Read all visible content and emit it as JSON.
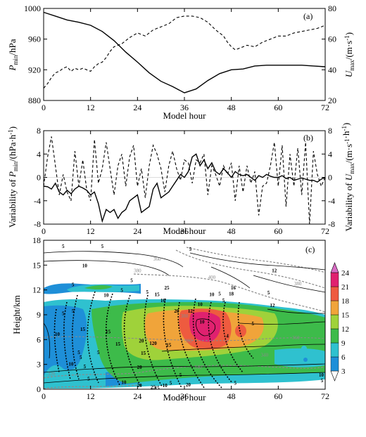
{
  "chart_data": [
    {
      "panel": "(a)",
      "type": "line",
      "xlabel": "Model hour",
      "ylabel_left": "P_min/hPa",
      "ylabel_right": "U_max/(m·s⁻¹)",
      "xlim": [
        0,
        72
      ],
      "xticks": [
        0,
        12,
        24,
        36,
        48,
        60,
        72
      ],
      "ylim_left": [
        880,
        1000
      ],
      "yticks_left": [
        880,
        920,
        960,
        1000
      ],
      "ylim_right": [
        20,
        80
      ],
      "yticks_right": [
        20,
        40,
        60,
        80
      ],
      "series": [
        {
          "axis": "left",
          "style": "solid",
          "x": [
            0,
            3,
            6,
            9,
            12,
            15,
            18,
            21,
            24,
            27,
            30,
            33,
            36,
            39,
            42,
            45,
            48,
            51,
            54,
            57,
            60,
            63,
            66,
            69,
            72
          ],
          "values": [
            995,
            990,
            985,
            982,
            978,
            970,
            958,
            943,
            930,
            916,
            905,
            898,
            890,
            895,
            906,
            915,
            920,
            921,
            925,
            926,
            926,
            926,
            926,
            925,
            924
          ]
        },
        {
          "axis": "right",
          "style": "dashed",
          "x": [
            0,
            1,
            2,
            3,
            4,
            5,
            6,
            7,
            8,
            9,
            10,
            11,
            12,
            13,
            14,
            15,
            16,
            17,
            18,
            20,
            22,
            24,
            26,
            28,
            30,
            32,
            34,
            36,
            38,
            40,
            42,
            44,
            46,
            47,
            48,
            49,
            50,
            52,
            54,
            56,
            58,
            60,
            62,
            64,
            66,
            68,
            70,
            72
          ],
          "values": [
            28,
            31,
            35,
            38,
            39,
            41,
            42,
            39,
            41,
            40,
            41,
            40,
            39,
            42,
            44,
            45,
            48,
            52,
            55,
            57,
            61,
            64,
            62,
            66,
            68,
            70,
            74,
            75,
            75,
            74,
            71,
            66,
            62,
            58,
            55,
            53,
            54,
            56,
            55,
            58,
            60,
            62,
            62,
            64,
            65,
            66,
            67,
            69
          ]
        }
      ]
    },
    {
      "panel": "(b)",
      "type": "line",
      "xlabel": "Model hour",
      "ylabel_left": "Variability of P_min/(hPa·h⁻¹)",
      "ylabel_right": "Variability of U_max/(m·s⁻¹·h⁻¹)",
      "xlim": [
        0,
        72
      ],
      "xticks": [
        0,
        12,
        24,
        36,
        48,
        60,
        72
      ],
      "ylim_left": [
        -8,
        8
      ],
      "yticks_left": [
        -8,
        -4,
        0,
        4,
        8
      ],
      "ylim_right": [
        -8,
        8
      ],
      "yticks_right": [
        -8,
        -4,
        0,
        4,
        8
      ],
      "series": [
        {
          "axis": "left",
          "style": "solid",
          "x": [
            0,
            1,
            2,
            3,
            4,
            5,
            6,
            7,
            8,
            9,
            10,
            11,
            12,
            13,
            14,
            15,
            16,
            17,
            18,
            19,
            20,
            21,
            22,
            23,
            24,
            25,
            26,
            27,
            28,
            29,
            30,
            31,
            32,
            33,
            34,
            35,
            36,
            37,
            38,
            39,
            40,
            41,
            42,
            43,
            44,
            45,
            46,
            47,
            48,
            49,
            50,
            51,
            52,
            53,
            54,
            55,
            56,
            57,
            58,
            59,
            60,
            61,
            62,
            63,
            64,
            65,
            66,
            67,
            68,
            69,
            70,
            71,
            72
          ],
          "values": [
            -1.5,
            -1.6,
            -2.0,
            -1.0,
            -2.5,
            -3.0,
            -2.2,
            -2.8,
            -2.0,
            -1.5,
            -1.8,
            -2.2,
            -3.0,
            -2.5,
            -4.5,
            -7.5,
            -5.5,
            -6.0,
            -5.5,
            -7.0,
            -6.0,
            -5.5,
            -4.0,
            -3.5,
            -3.0,
            -6.0,
            -5.5,
            -5.0,
            -2.0,
            -1.0,
            -3.5,
            -3.0,
            -2.5,
            -1.5,
            -0.5,
            0.5,
            0.0,
            1.0,
            3.5,
            4.0,
            2.0,
            3.0,
            1.5,
            2.5,
            1.0,
            0.5,
            1.5,
            0.8,
            0.0,
            1.0,
            0.5,
            0.3,
            0.5,
            0.0,
            -0.5,
            0.3,
            0.0,
            0.5,
            0.2,
            0.0,
            0.0,
            0.3,
            -0.2,
            0.0,
            -0.5,
            -0.3,
            -0.1,
            -0.3,
            -0.5,
            -0.5,
            -0.8,
            -0.3,
            0.0
          ]
        },
        {
          "axis": "right",
          "style": "dashed",
          "x": [
            0,
            1,
            2,
            3,
            4,
            5,
            6,
            7,
            8,
            9,
            10,
            11,
            12,
            13,
            14,
            15,
            16,
            17,
            18,
            19,
            20,
            21,
            22,
            23,
            24,
            25,
            26,
            27,
            28,
            29,
            30,
            31,
            32,
            33,
            34,
            35,
            36,
            37,
            38,
            39,
            40,
            41,
            42,
            43,
            44,
            45,
            46,
            47,
            48,
            49,
            50,
            51,
            52,
            53,
            54,
            55,
            56,
            57,
            58,
            59,
            60,
            61,
            62,
            63,
            64,
            65,
            66,
            67,
            68,
            69,
            70,
            71,
            72
          ],
          "values": [
            -1.5,
            3.5,
            7.0,
            2.0,
            -3.0,
            0.5,
            -2.5,
            -4.0,
            4.5,
            -1.5,
            3.0,
            -2.0,
            -4.0,
            6.5,
            -1.0,
            1.5,
            6.0,
            1.5,
            -3.0,
            2.0,
            4.0,
            -1.5,
            3.5,
            5.5,
            -1.5,
            1.5,
            -3.5,
            2.0,
            5.5,
            4.0,
            1.5,
            -2.5,
            2.0,
            4.5,
            1.5,
            -0.5,
            3.0,
            2.5,
            -1.0,
            3.0,
            2.5,
            4.0,
            -3.0,
            2.0,
            0.5,
            -1.5,
            2.0,
            0.5,
            2.5,
            -4.0,
            2.0,
            -2.5,
            2.0,
            -1.0,
            1.0,
            -6.5,
            -1.5,
            -1.0,
            2.0,
            6.0,
            -1.5,
            5.5,
            -5.0,
            4.0,
            -1.5,
            5.0,
            -3.0,
            6.0,
            -8.0,
            4.5,
            0.5,
            -1.5,
            0.0
          ]
        }
      ]
    },
    {
      "panel": "(c)",
      "type": "heatmap",
      "xlabel": "Model hour",
      "ylabel": "Height/km",
      "xlim": [
        0,
        72
      ],
      "xticks": [
        0,
        12,
        24,
        36,
        48,
        60,
        72
      ],
      "ylim": [
        0,
        18
      ],
      "yticks": [
        0,
        3,
        6,
        9,
        12,
        15,
        18
      ],
      "colorbar": {
        "ticks": [
          3,
          6,
          9,
          12,
          15,
          18,
          21,
          24
        ],
        "colors": [
          "#ffffff",
          "#1e8fd8",
          "#2fc1cf",
          "#3dbb4a",
          "#9fd23a",
          "#f0a43a",
          "#ee5b3f",
          "#e0216f",
          "#d86cc4"
        ]
      },
      "contour_labels": [
        {
          "text": "5",
          "x": 5,
          "y": 17.3
        },
        {
          "text": "5",
          "x": 15,
          "y": 17.3
        },
        {
          "text": "5",
          "x": 37.5,
          "y": 17.0
        },
        {
          "text": "360",
          "x": 29,
          "y": 15.8
        },
        {
          "text": "380",
          "x": 24,
          "y": 14.4
        },
        {
          "text": "400",
          "x": 43,
          "y": 13.6
        },
        {
          "text": "12",
          "x": 59,
          "y": 14.4
        },
        {
          "text": "380",
          "x": 65,
          "y": 12.8
        },
        {
          "text": "10",
          "x": 10.5,
          "y": 15.0
        },
        {
          "text": "10",
          "x": 16,
          "y": 11.4
        },
        {
          "text": "5",
          "x": 7.5,
          "y": 12.7
        },
        {
          "text": "5",
          "x": 22.5,
          "y": 13.2
        },
        {
          "text": "5",
          "x": 20,
          "y": 12.0
        },
        {
          "text": "5",
          "x": 26.5,
          "y": 11.8
        },
        {
          "text": "10",
          "x": 43,
          "y": 11.5
        },
        {
          "text": "10",
          "x": 30.5,
          "y": 10.8
        },
        {
          "text": "10",
          "x": 40,
          "y": 10.3
        },
        {
          "text": "15",
          "x": 29,
          "y": 11.5
        },
        {
          "text": "25",
          "x": 31.5,
          "y": 12.3
        },
        {
          "text": "5",
          "x": 45,
          "y": 11.6
        },
        {
          "text": "5",
          "x": 46,
          "y": 10.8
        },
        {
          "text": "5",
          "x": 57.5,
          "y": 11.7
        },
        {
          "text": "18",
          "x": 48,
          "y": 11.6
        },
        {
          "text": "16",
          "x": 48.5,
          "y": 12.3
        },
        {
          "text": "12",
          "x": 58.5,
          "y": 10.2
        },
        {
          "text": "5",
          "x": 5,
          "y": 9.2
        },
        {
          "text": "5",
          "x": 7.5,
          "y": 9.5
        },
        {
          "text": "10",
          "x": 3.5,
          "y": 6.7
        },
        {
          "text": "15",
          "x": 10,
          "y": 7.3
        },
        {
          "text": "15",
          "x": 16.5,
          "y": 7.0
        },
        {
          "text": "12",
          "x": 37.5,
          "y": 9.5
        },
        {
          "text": "380",
          "x": 36,
          "y": 8.9
        },
        {
          "text": "10",
          "x": 40.5,
          "y": 8.2
        },
        {
          "text": "20",
          "x": 34,
          "y": 9.5
        },
        {
          "text": "15",
          "x": 32,
          "y": 5.4
        },
        {
          "text": "20",
          "x": 25,
          "y": 5.9
        },
        {
          "text": "120",
          "x": 28,
          "y": 5.6
        },
        {
          "text": "360",
          "x": 37,
          "y": 5.9
        },
        {
          "text": "15",
          "x": 25.5,
          "y": 4.4
        },
        {
          "text": "15",
          "x": 19,
          "y": 5.5
        },
        {
          "text": "5",
          "x": 53.5,
          "y": 8.0
        },
        {
          "text": "4",
          "x": 47,
          "y": 6.5
        },
        {
          "text": "360",
          "x": 64.5,
          "y": 6.3
        },
        {
          "text": "5",
          "x": 14,
          "y": 4.5
        },
        {
          "text": "5",
          "x": 9.5,
          "y": 3.9
        },
        {
          "text": "10",
          "x": 7,
          "y": 3.1
        },
        {
          "text": "5",
          "x": 9,
          "y": 4.5
        },
        {
          "text": "5",
          "x": 10.5,
          "y": 2.8
        },
        {
          "text": "20",
          "x": 24.5,
          "y": 2.7
        },
        {
          "text": "340",
          "x": 39.5,
          "y": 2.7
        },
        {
          "text": "340",
          "x": 56.5,
          "y": 4.2
        },
        {
          "text": "320",
          "x": 2,
          "y": 1.9
        },
        {
          "text": "5",
          "x": 11.5,
          "y": 1.3
        },
        {
          "text": "5",
          "x": 35,
          "y": 1.8
        },
        {
          "text": "10",
          "x": 20.5,
          "y": 0.9
        },
        {
          "text": "5",
          "x": 32.5,
          "y": 0.8
        },
        {
          "text": "20",
          "x": 24.5,
          "y": 0.5
        },
        {
          "text": "25",
          "x": 28,
          "y": 0.3
        },
        {
          "text": "20",
          "x": 37,
          "y": 0.6
        },
        {
          "text": "15",
          "x": 29,
          "y": 0.2
        },
        {
          "text": "10",
          "x": 31,
          "y": 0.5
        },
        {
          "text": "5",
          "x": 49,
          "y": 0.8
        },
        {
          "text": "10",
          "x": 71,
          "y": 1.8
        },
        {
          "text": "5",
          "x": 71.2,
          "y": 1.1
        }
      ]
    }
  ]
}
